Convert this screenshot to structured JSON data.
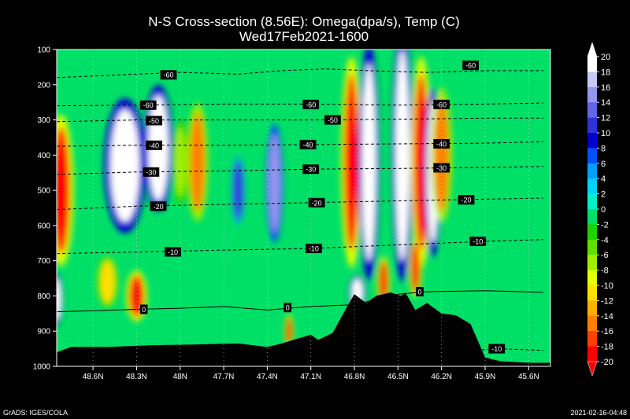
{
  "chart_data": {
    "type": "heatmap",
    "title": "N-S Cross-section (8.56E): Omega(dpa/s), Temp (C)",
    "subtitle": "Wed17Feb2021-1600",
    "x_ticks": [
      "48.6N",
      "48.3N",
      "48N",
      "47.7N",
      "47.4N",
      "47.1N",
      "46.8N",
      "46.5N",
      "46.2N",
      "45.9N",
      "45.6N"
    ],
    "y_ticks": [
      100,
      200,
      300,
      400,
      500,
      600,
      700,
      800,
      900,
      1000
    ],
    "ylim": [
      100,
      1000
    ],
    "colorbar": {
      "levels": [
        20,
        18,
        16,
        14,
        12,
        10,
        8,
        6,
        4,
        2,
        0,
        -2,
        -4,
        -6,
        -8,
        -10,
        -12,
        -14,
        -16,
        -18,
        -20
      ],
      "colors": [
        "#ffffff",
        "#c9c9f5",
        "#9696ec",
        "#6464e6",
        "#3232dc",
        "#0000d2",
        "#0050ff",
        "#00a0ff",
        "#00d2ff",
        "#00f0c8",
        "#00e066",
        "#20d000",
        "#60e000",
        "#a0f000",
        "#e6ff00",
        "#ffe000",
        "#ffb000",
        "#ff8000",
        "#ff4000",
        "#ff0000"
      ]
    },
    "isotherms": [
      {
        "value": -60,
        "label": "-60",
        "p": [
          [
            48.85,
            180
          ],
          [
            48.3,
            170
          ],
          [
            48.0,
            165
          ],
          [
            47.6,
            170
          ],
          [
            47.3,
            160
          ],
          [
            47.0,
            155
          ],
          [
            46.7,
            160
          ],
          [
            46.3,
            165
          ],
          [
            45.9,
            160
          ],
          [
            45.5,
            160
          ]
        ]
      },
      {
        "value": -60,
        "label": "-60",
        "p": [
          [
            48.85,
            260
          ],
          [
            48.3,
            258
          ],
          [
            47.7,
            255
          ],
          [
            47.1,
            255
          ],
          [
            46.5,
            258
          ],
          [
            45.9,
            255
          ],
          [
            45.5,
            252
          ]
        ]
      },
      {
        "value": -50,
        "label": "-50",
        "p": [
          [
            48.85,
            305
          ],
          [
            48.3,
            300
          ],
          [
            47.7,
            300
          ],
          [
            47.1,
            300
          ],
          [
            46.5,
            298
          ],
          [
            45.9,
            295
          ],
          [
            45.5,
            295
          ]
        ]
      },
      {
        "value": -40,
        "label": "-40",
        "p": [
          [
            48.85,
            375
          ],
          [
            48.3,
            372
          ],
          [
            47.7,
            372
          ],
          [
            47.1,
            370
          ],
          [
            46.5,
            368
          ],
          [
            45.9,
            366
          ],
          [
            45.5,
            362
          ]
        ]
      },
      {
        "value": -30,
        "label": "-30",
        "p": [
          [
            48.85,
            455
          ],
          [
            48.3,
            448
          ],
          [
            47.7,
            445
          ],
          [
            47.1,
            440
          ],
          [
            46.5,
            438
          ],
          [
            45.9,
            435
          ],
          [
            45.5,
            432
          ]
        ]
      },
      {
        "value": -20,
        "label": "-20",
        "p": [
          [
            48.85,
            555
          ],
          [
            48.3,
            545
          ],
          [
            47.7,
            540
          ],
          [
            47.1,
            535
          ],
          [
            46.5,
            530
          ],
          [
            45.9,
            525
          ],
          [
            45.5,
            522
          ]
        ]
      },
      {
        "value": -10,
        "label": "-10",
        "p": [
          [
            48.85,
            680
          ],
          [
            48.3,
            675
          ],
          [
            47.7,
            670
          ],
          [
            47.1,
            665
          ],
          [
            46.5,
            655
          ],
          [
            45.9,
            645
          ],
          [
            45.5,
            640
          ]
        ]
      },
      {
        "value": 0,
        "label": "0",
        "p": [
          [
            48.85,
            845
          ],
          [
            48.6,
            842
          ],
          [
            48.3,
            838
          ],
          [
            48.0,
            835
          ],
          [
            47.7,
            830
          ],
          [
            47.4,
            840
          ],
          [
            47.1,
            830
          ],
          [
            46.8,
            825
          ],
          [
            46.55,
            800
          ],
          [
            46.5,
            795
          ],
          [
            46.3,
            788
          ],
          [
            45.9,
            785
          ],
          [
            45.5,
            790
          ]
        ]
      },
      {
        "value": -10,
        "label": "-10",
        "p": [
          [
            46.0,
            955
          ],
          [
            45.8,
            950
          ],
          [
            45.5,
            955
          ]
        ]
      }
    ],
    "isotherm_labels": [
      {
        "text": "-60",
        "x": 48.08,
        "p": 172
      },
      {
        "text": "-60",
        "x": 46.0,
        "p": 145
      },
      {
        "text": "-60",
        "x": 48.22,
        "p": 258
      },
      {
        "text": "-60",
        "x": 47.1,
        "p": 256
      },
      {
        "text": "-60",
        "x": 46.2,
        "p": 256
      },
      {
        "text": "-50",
        "x": 48.18,
        "p": 302
      },
      {
        "text": "-50",
        "x": 46.95,
        "p": 300
      },
      {
        "text": "-40",
        "x": 48.18,
        "p": 372
      },
      {
        "text": "-40",
        "x": 47.12,
        "p": 370
      },
      {
        "text": "-40",
        "x": 46.2,
        "p": 368
      },
      {
        "text": "-30",
        "x": 48.2,
        "p": 448
      },
      {
        "text": "-30",
        "x": 47.1,
        "p": 440
      },
      {
        "text": "-30",
        "x": 46.2,
        "p": 436
      },
      {
        "text": "-20",
        "x": 48.15,
        "p": 545
      },
      {
        "text": "-20",
        "x": 47.06,
        "p": 535
      },
      {
        "text": "-20",
        "x": 46.03,
        "p": 527
      },
      {
        "text": "-10",
        "x": 48.05,
        "p": 675
      },
      {
        "text": "-10",
        "x": 47.08,
        "p": 665
      },
      {
        "text": "-10",
        "x": 45.95,
        "p": 645
      },
      {
        "text": "0",
        "x": 48.25,
        "p": 838
      },
      {
        "text": "0",
        "x": 47.26,
        "p": 833
      },
      {
        "text": "0",
        "x": 46.35,
        "p": 788
      },
      {
        "text": "-10",
        "x": 45.82,
        "p": 950
      }
    ],
    "omega_features": [
      {
        "x": 48.82,
        "p": 500,
        "rx": 0.06,
        "rp": 180,
        "v": -20
      },
      {
        "x": 48.38,
        "p": 430,
        "rx": 0.1,
        "rp": 160,
        "v": 20
      },
      {
        "x": 48.15,
        "p": 380,
        "rx": 0.07,
        "rp": 150,
        "v": 20
      },
      {
        "x": 48.0,
        "p": 420,
        "rx": 0.04,
        "rp": 100,
        "v": -8
      },
      {
        "x": 47.88,
        "p": 420,
        "rx": 0.05,
        "rp": 140,
        "v": -16
      },
      {
        "x": 48.3,
        "p": 800,
        "rx": 0.05,
        "rp": 60,
        "v": -20
      },
      {
        "x": 48.5,
        "p": 760,
        "rx": 0.05,
        "rp": 60,
        "v": -12
      },
      {
        "x": 48.85,
        "p": 810,
        "rx": 0.03,
        "rp": 60,
        "v": 20
      },
      {
        "x": 47.35,
        "p": 480,
        "rx": 0.04,
        "rp": 140,
        "v": 16
      },
      {
        "x": 47.25,
        "p": 900,
        "rx": 0.02,
        "rp": 40,
        "v": -20
      },
      {
        "x": 47.6,
        "p": 500,
        "rx": 0.03,
        "rp": 80,
        "v": 12
      },
      {
        "x": 46.82,
        "p": 420,
        "rx": 0.05,
        "rp": 250,
        "v": -20
      },
      {
        "x": 46.7,
        "p": 420,
        "rx": 0.05,
        "rp": 280,
        "v": 20
      },
      {
        "x": 46.6,
        "p": 760,
        "rx": 0.03,
        "rp": 60,
        "v": -20
      },
      {
        "x": 46.47,
        "p": 400,
        "rx": 0.05,
        "rp": 300,
        "v": 20
      },
      {
        "x": 46.34,
        "p": 420,
        "rx": 0.05,
        "rp": 250,
        "v": -20
      },
      {
        "x": 46.26,
        "p": 450,
        "rx": 0.04,
        "rp": 200,
        "v": 20
      },
      {
        "x": 46.2,
        "p": 400,
        "rx": 0.05,
        "rp": 160,
        "v": -16
      },
      {
        "x": 46.38,
        "p": 720,
        "rx": 0.03,
        "rp": 70,
        "v": -20
      },
      {
        "x": 46.78,
        "p": 790,
        "rx": 0.04,
        "rp": 40,
        "v": 20
      }
    ],
    "terrain": [
      [
        48.85,
        960
      ],
      [
        48.75,
        945
      ],
      [
        48.5,
        945
      ],
      [
        48.2,
        940
      ],
      [
        47.9,
        938
      ],
      [
        47.6,
        935
      ],
      [
        47.4,
        945
      ],
      [
        47.3,
        935
      ],
      [
        47.1,
        910
      ],
      [
        47.05,
        925
      ],
      [
        46.95,
        905
      ],
      [
        46.85,
        830
      ],
      [
        46.8,
        795
      ],
      [
        46.72,
        820
      ],
      [
        46.65,
        800
      ],
      [
        46.55,
        790
      ],
      [
        46.48,
        800
      ],
      [
        46.45,
        790
      ],
      [
        46.38,
        840
      ],
      [
        46.3,
        820
      ],
      [
        46.2,
        850
      ],
      [
        46.1,
        855
      ],
      [
        46.0,
        880
      ],
      [
        45.9,
        975
      ],
      [
        45.8,
        985
      ],
      [
        45.6,
        990
      ],
      [
        45.45,
        990
      ]
    ],
    "footer_left": "GrADS: IGES/COLA",
    "footer_right": "2021-02-16-04:48"
  }
}
